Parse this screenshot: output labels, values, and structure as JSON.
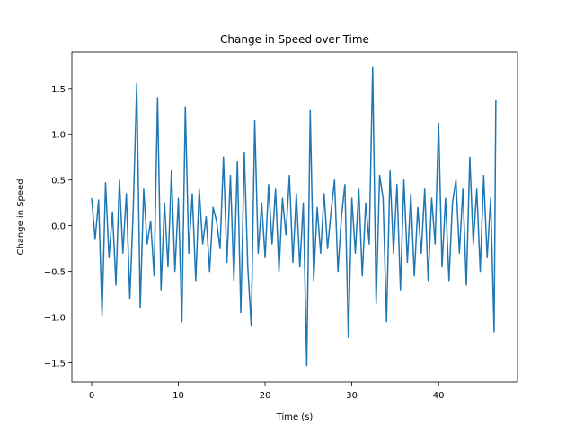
{
  "chart_data": {
    "type": "line",
    "title": "Change in Speed over Time",
    "x_label": "Time (s)",
    "y_label": "Change in Speed",
    "x": [
      0,
      0.4,
      0.8,
      1.2,
      1.6,
      2.0,
      2.4,
      2.8,
      3.2,
      3.6,
      4.0,
      4.4,
      4.8,
      5.2,
      5.6,
      6.0,
      6.4,
      6.8,
      7.2,
      7.6,
      8.0,
      8.4,
      8.8,
      9.2,
      9.6,
      10.0,
      10.4,
      10.8,
      11.2,
      11.6,
      12.0,
      12.4,
      12.8,
      13.2,
      13.6,
      14.0,
      14.4,
      14.8,
      15.2,
      15.6,
      16.0,
      16.4,
      16.8,
      17.2,
      17.6,
      18.0,
      18.4,
      18.8,
      19.2,
      19.6,
      20.0,
      20.4,
      20.8,
      21.2,
      21.6,
      22.0,
      22.4,
      22.8,
      23.2,
      23.6,
      24.0,
      24.4,
      24.8,
      25.2,
      25.6,
      26.0,
      26.4,
      26.8,
      27.2,
      27.6,
      28.0,
      28.4,
      28.8,
      29.2,
      29.6,
      30.0,
      30.4,
      30.8,
      31.2,
      31.6,
      32.0,
      32.4,
      32.8,
      33.2,
      33.6,
      34.0,
      34.4,
      34.8,
      35.2,
      35.6,
      36.0,
      36.4,
      36.8,
      37.2,
      37.6,
      38.0,
      38.4,
      38.8,
      39.2,
      39.6,
      40.0,
      40.4,
      40.8,
      41.2,
      41.6,
      42.0,
      42.4,
      42.8,
      43.2,
      43.6,
      44.0,
      44.4,
      44.8,
      45.2,
      45.6,
      46.0,
      46.4,
      46.6
    ],
    "series": [
      {
        "name": "Change in Speed",
        "color": "#1f77b4",
        "values": [
          0.3,
          -0.15,
          0.28,
          -0.98,
          0.47,
          -0.35,
          0.15,
          -0.65,
          0.5,
          -0.3,
          0.35,
          -0.8,
          0.2,
          1.55,
          -0.9,
          0.4,
          -0.2,
          0.05,
          -0.55,
          1.4,
          -0.7,
          0.25,
          -0.45,
          0.6,
          -0.5,
          0.3,
          -1.05,
          1.3,
          -0.3,
          0.35,
          -0.6,
          0.4,
          -0.2,
          0.1,
          -0.5,
          0.2,
          0.05,
          -0.25,
          0.75,
          -0.4,
          0.55,
          -0.6,
          0.7,
          -0.95,
          0.8,
          -0.45,
          -1.1,
          1.15,
          -0.3,
          0.25,
          -0.35,
          0.45,
          -0.2,
          0.4,
          -0.5,
          0.3,
          -0.1,
          0.55,
          -0.4,
          0.35,
          -0.45,
          0.25,
          -1.53,
          1.26,
          -0.6,
          0.2,
          -0.3,
          0.35,
          -0.25,
          0.15,
          0.5,
          -0.5,
          0.1,
          0.45,
          -1.22,
          0.3,
          -0.3,
          0.4,
          -0.55,
          0.25,
          -0.2,
          1.73,
          -0.85,
          0.55,
          0.3,
          -1.05,
          0.6,
          -0.3,
          0.45,
          -0.7,
          0.5,
          -0.4,
          0.35,
          -0.55,
          0.2,
          -0.3,
          0.4,
          -0.6,
          0.3,
          -0.2,
          1.12,
          -0.45,
          0.3,
          -0.6,
          0.25,
          0.5,
          -0.3,
          0.4,
          -0.65,
          0.75,
          -0.2,
          0.4,
          -0.5,
          0.55,
          -0.35,
          0.3,
          -1.16,
          1.37
        ]
      }
    ],
    "xlim": [
      -2.28,
      49.1
    ],
    "ylim": [
      -1.71,
      1.9
    ],
    "xticks": [
      0,
      10,
      20,
      30,
      40
    ],
    "yticks": [
      {
        "value": -1.5,
        "label": "−1.5"
      },
      {
        "value": -1.0,
        "label": "−1.0"
      },
      {
        "value": -0.5,
        "label": "−0.5"
      },
      {
        "value": 0,
        "label": "0.0"
      },
      0.5,
      {
        "value": 1.0,
        "label": "1.0"
      },
      1.5
    ],
    "grid": false
  }
}
